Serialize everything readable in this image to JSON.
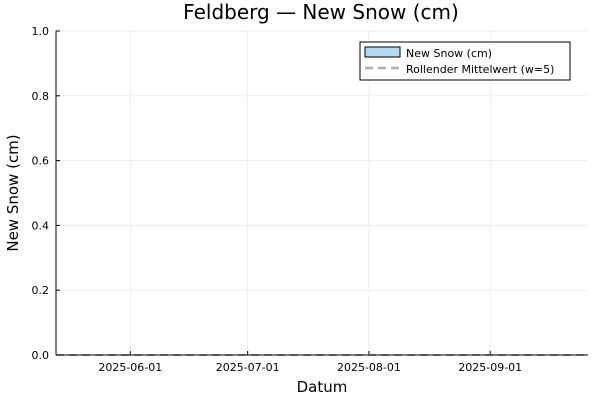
{
  "chart_data": {
    "type": "bar",
    "title": "Feldberg — New Snow (cm)",
    "xlabel": "Datum",
    "ylabel": "New Snow (cm)",
    "x_type": "date",
    "xlim": [
      "2025-05-13",
      "2025-09-26"
    ],
    "ylim": [
      0,
      1.0
    ],
    "x_ticks": [
      "2025-06-01",
      "2025-07-01",
      "2025-08-01",
      "2025-09-01"
    ],
    "y_ticks": [
      0.0,
      0.2,
      0.4,
      0.6,
      0.8,
      1.0
    ],
    "y_tick_labels": [
      "0.0",
      "0.2",
      "0.4",
      "0.6",
      "0.8",
      "1.0"
    ],
    "grid": true,
    "legend_position": "top-right",
    "series": [
      {
        "name": "New Snow (cm)",
        "type": "bar",
        "color": "#b3d9f2",
        "values": "all 0 (no bars visible)"
      },
      {
        "name": "Rollender Mittelwert (w=5)",
        "type": "line",
        "style": "dashed",
        "color": "#b0b0b0",
        "values": "all 0 (flat at baseline)"
      }
    ]
  }
}
